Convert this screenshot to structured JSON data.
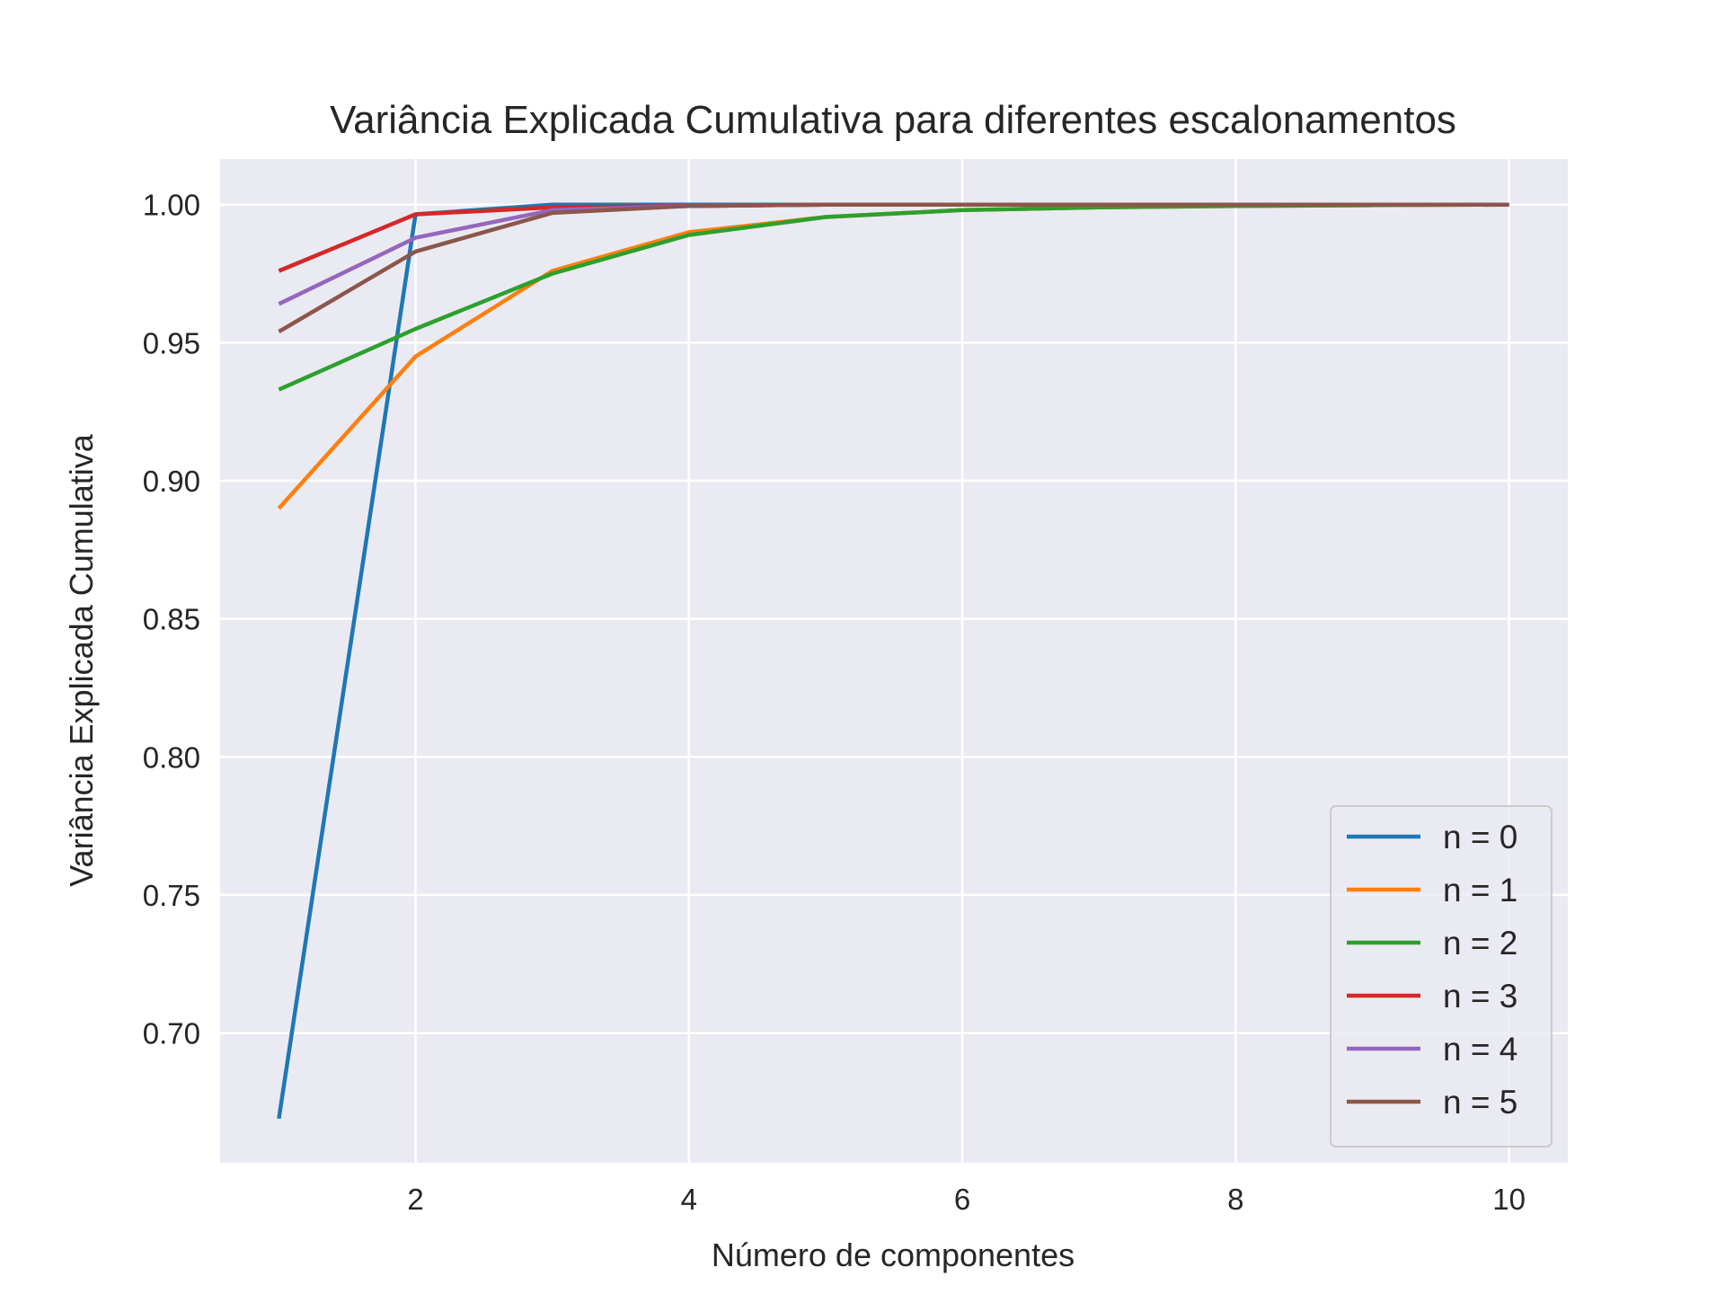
{
  "chart_data": {
    "type": "line",
    "title": "Variância Explicada Cumulativa para diferentes escalonamentos",
    "xlabel": "Número de componentes",
    "ylabel": "Variância Explicada Cumulativa",
    "xlim": [
      0.57,
      10.43
    ],
    "ylim": [
      0.653,
      1.0165
    ],
    "x_ticks": [
      2,
      4,
      6,
      8,
      10
    ],
    "x_tick_labels": [
      "2",
      "4",
      "6",
      "8",
      "10"
    ],
    "y_ticks": [
      0.7,
      0.75,
      0.8,
      0.85,
      0.9,
      0.95,
      1.0
    ],
    "y_tick_labels": [
      "0.70",
      "0.75",
      "0.80",
      "0.85",
      "0.90",
      "0.95",
      "1.00"
    ],
    "grid": true,
    "background": "#eaeaf2",
    "legend_position": "lower right",
    "x": [
      1,
      2,
      3,
      4,
      5,
      6,
      7,
      8,
      9,
      10
    ],
    "series": [
      {
        "name": "n = 0",
        "color": "#1f77b4",
        "values": [
          0.669,
          0.9965,
          1.0,
          1.0,
          1.0,
          1.0,
          1.0,
          1.0,
          1.0,
          1.0
        ]
      },
      {
        "name": "n = 1",
        "color": "#ff7f0e",
        "values": [
          0.89,
          0.945,
          0.976,
          0.99,
          0.9955,
          0.998,
          0.999,
          0.9995,
          0.9998,
          1.0
        ]
      },
      {
        "name": "n = 2",
        "color": "#2ca02c",
        "values": [
          0.933,
          0.955,
          0.975,
          0.989,
          0.9955,
          0.998,
          0.999,
          0.9995,
          0.9998,
          1.0
        ]
      },
      {
        "name": "n = 3",
        "color": "#d62728",
        "values": [
          0.976,
          0.9965,
          0.999,
          0.9995,
          1.0,
          1.0,
          1.0,
          1.0,
          1.0,
          1.0
        ]
      },
      {
        "name": "n = 4",
        "color": "#9467bd",
        "values": [
          0.964,
          0.988,
          0.998,
          0.9995,
          1.0,
          1.0,
          1.0,
          1.0,
          1.0,
          1.0
        ]
      },
      {
        "name": "n = 5",
        "color": "#8c564b",
        "values": [
          0.954,
          0.983,
          0.997,
          0.9995,
          1.0,
          1.0,
          1.0,
          1.0,
          1.0,
          1.0
        ]
      }
    ]
  }
}
